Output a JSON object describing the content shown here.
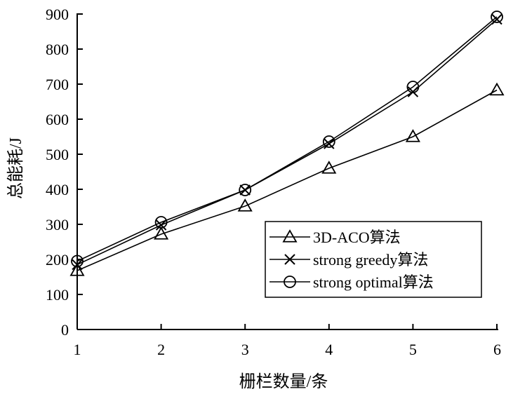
{
  "chart_data": {
    "type": "line",
    "xlabel": "栅栏数量/条",
    "ylabel": "总能耗/J",
    "x": [
      1,
      2,
      3,
      4,
      5,
      6
    ],
    "xlim": [
      1,
      6
    ],
    "ylim": [
      0,
      900
    ],
    "x_ticks": [
      "1",
      "2",
      "3",
      "4",
      "5",
      "6"
    ],
    "y_ticks": [
      "0",
      "100",
      "200",
      "300",
      "400",
      "500",
      "600",
      "700",
      "800",
      "900"
    ],
    "grid": false,
    "legend_position": "lower-right",
    "line_color": "#000000",
    "series": [
      {
        "name": "3D-ACO算法",
        "marker": "triangle",
        "values": [
          168,
          272,
          352,
          460,
          550,
          683
        ]
      },
      {
        "name": "strong greedy算法",
        "marker": "x",
        "values": [
          185,
          298,
          398,
          530,
          678,
          885
        ]
      },
      {
        "name": "strong optimal算法",
        "marker": "circle",
        "values": [
          195,
          306,
          398,
          536,
          692,
          892
        ]
      }
    ]
  }
}
